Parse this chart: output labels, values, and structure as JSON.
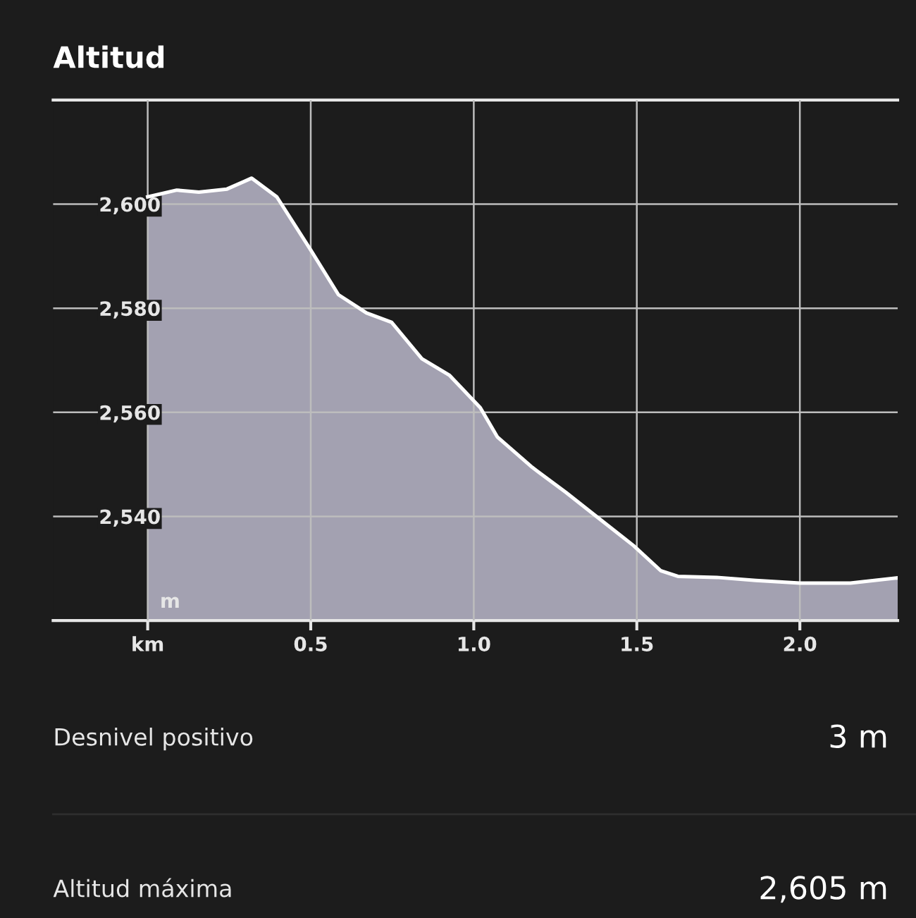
{
  "chart_data": {
    "type": "area",
    "title": "Altitud",
    "ylabel": "m",
    "x": [
      0,
      0.089,
      0.157,
      0.243,
      0.319,
      0.396,
      0.5,
      0.585,
      0.671,
      0.748,
      0.841,
      0.926,
      1.02,
      1.072,
      1.18,
      1.283,
      1.37,
      1.49,
      1.573,
      1.626,
      1.745,
      1.865,
      2.0,
      2.155,
      2.3
    ],
    "series": [
      {
        "color": "#a3a1b1",
        "values": [
          2601.4,
          2602.7,
          2602.3,
          2602.9,
          2605,
          2601.4,
          2591.2,
          2582.6,
          2579.1,
          2577.3,
          2570.3,
          2567.1,
          2560.9,
          2555.3,
          2549.4,
          2544.6,
          2540.3,
          2534.4,
          2529.6,
          2528.5,
          2528.3,
          2527.7,
          2527.2,
          2527.2,
          2528.2
        ]
      }
    ],
    "xlim": [
      -0.29,
      2.3
    ],
    "ylim": [
      2520,
      2620
    ],
    "xticks": [
      {
        "value": 0,
        "label": "km"
      },
      0.5,
      {
        "value": 1.0,
        "label": "1.0"
      },
      1.5,
      {
        "value": 2.0,
        "label": "2.0"
      }
    ],
    "yticks": [
      {
        "value": 2540,
        "label": "2,540"
      },
      {
        "value": 2560,
        "label": "2,560"
      },
      {
        "value": 2580,
        "label": "2,580"
      },
      {
        "value": 2600,
        "label": "2,600"
      }
    ],
    "grid": true,
    "annotations": [
      "Desnivel positivo",
      "3 m",
      "Altitud máxima",
      "2,605 m"
    ]
  }
}
